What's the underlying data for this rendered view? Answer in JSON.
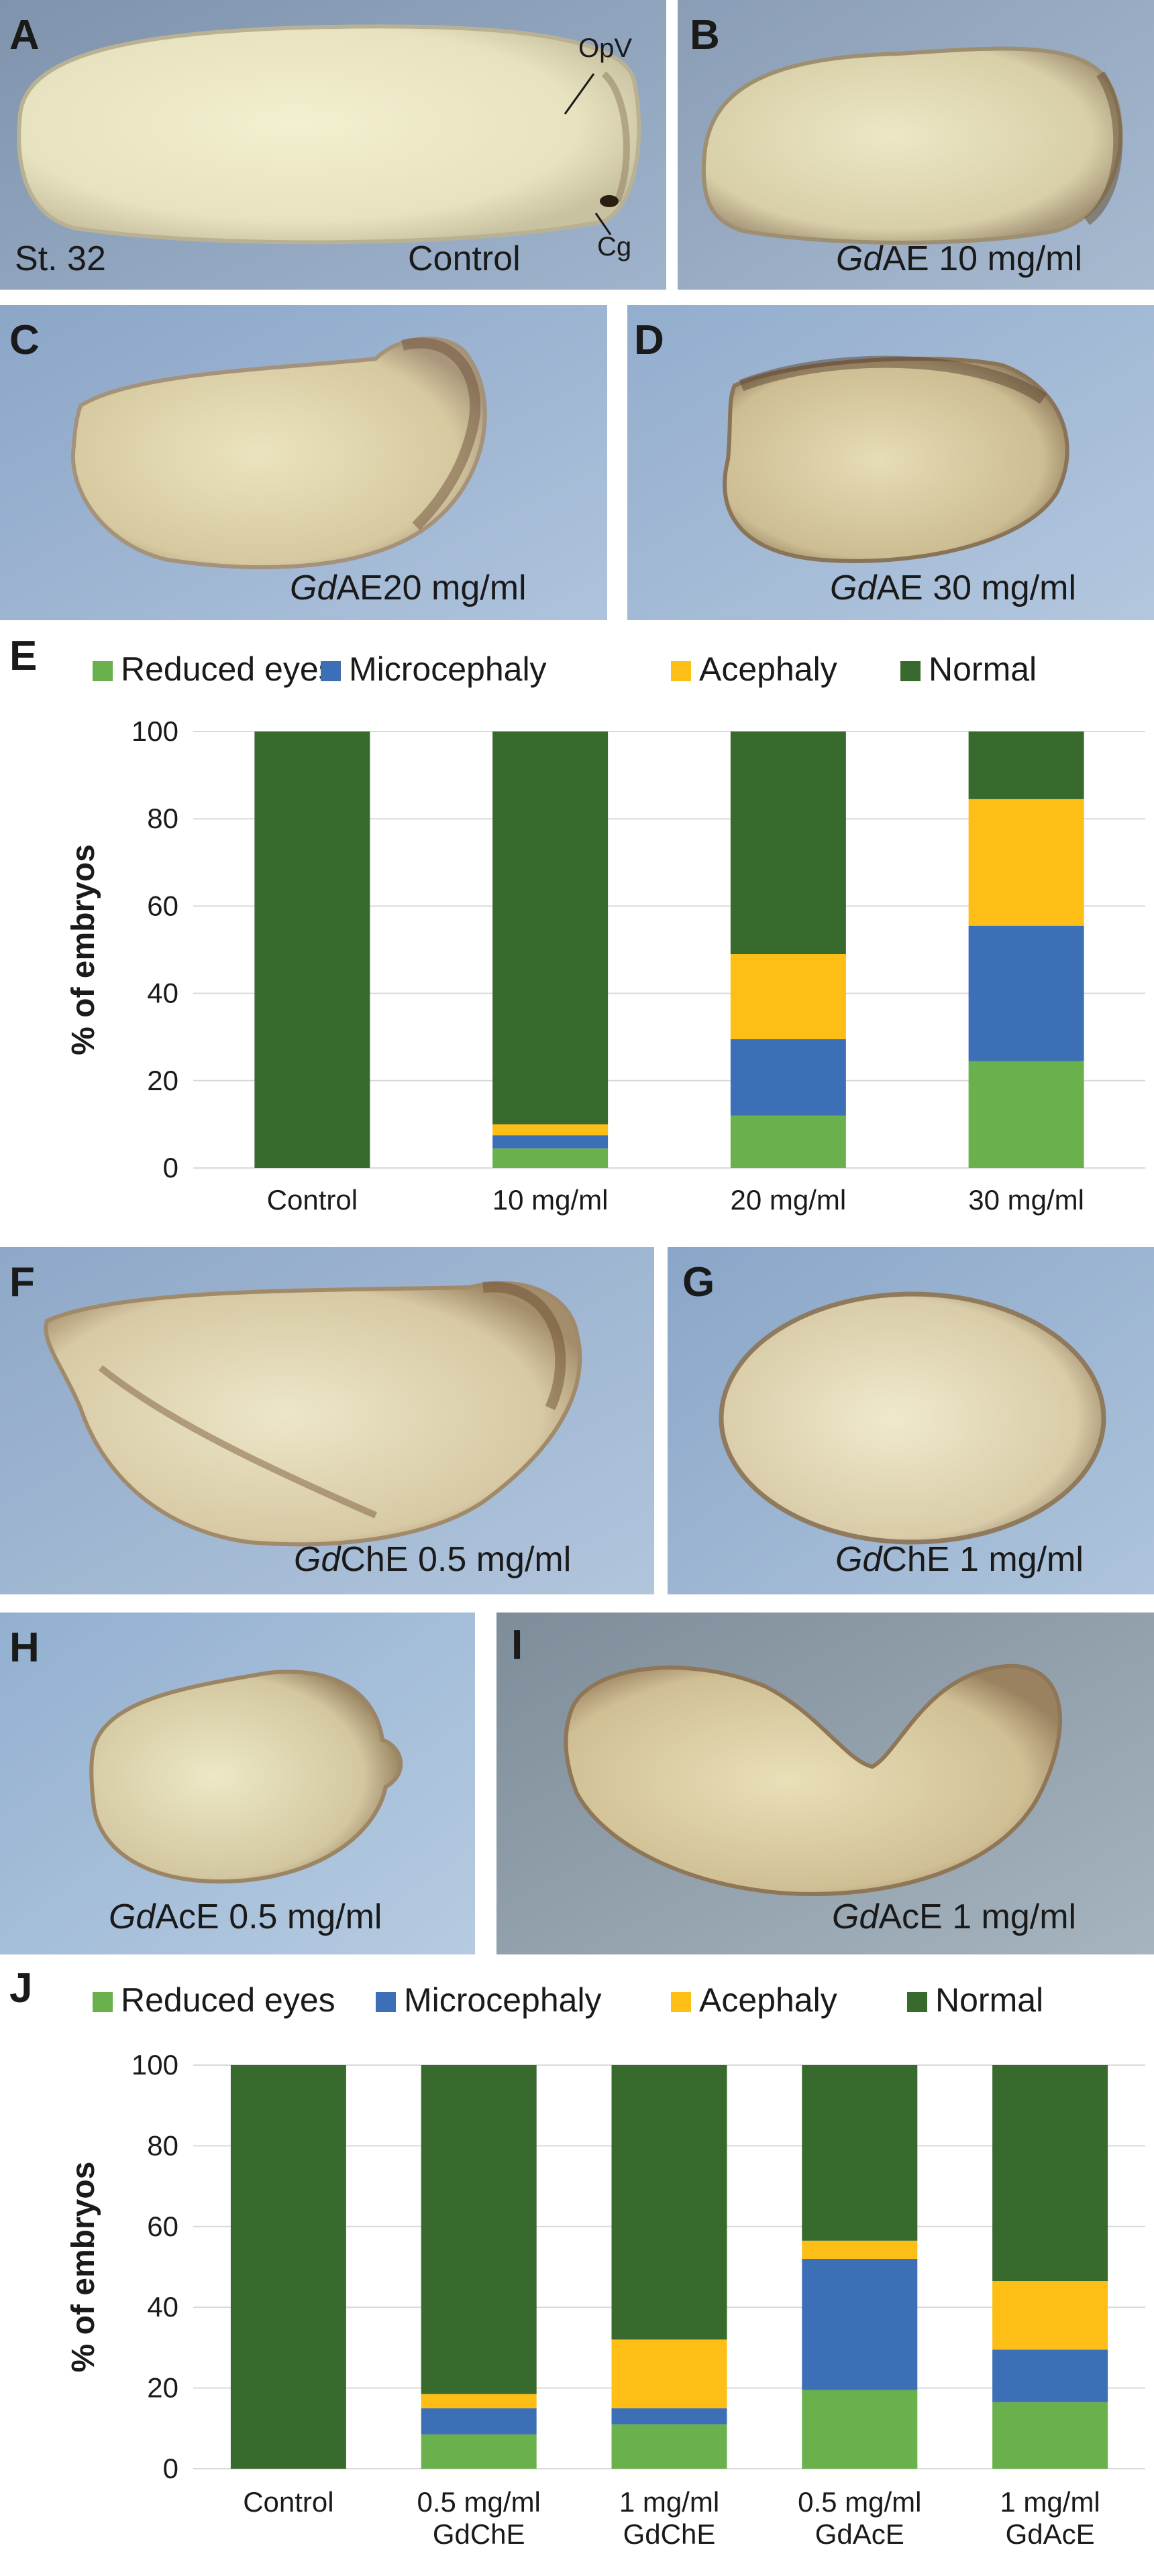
{
  "panels": {
    "A": {
      "label": "A",
      "stage": "St. 32",
      "caption": "Control",
      "annot_top": "OpV",
      "annot_bottom": "Cg"
    },
    "B": {
      "label": "B",
      "caption_em": "Gd",
      "caption_rest": "AE 10 mg/ml"
    },
    "C": {
      "label": "C",
      "caption_em": "Gd",
      "caption_rest": "AE20 mg/ml"
    },
    "D": {
      "label": "D",
      "caption_em": "Gd",
      "caption_rest": "AE 30 mg/ml"
    },
    "F": {
      "label": "F",
      "caption_em": "Gd",
      "caption_rest": "ChE 0.5 mg/ml"
    },
    "G": {
      "label": "G",
      "caption_em": "Gd",
      "caption_rest": "ChE 1 mg/ml"
    },
    "H": {
      "label": "H",
      "caption_em": "Gd",
      "caption_rest": "AcE 0.5 mg/ml"
    },
    "I": {
      "label": "I",
      "caption_em": "Gd",
      "caption_rest": "AcE 1 mg/ml"
    }
  },
  "colors": {
    "reduced_eyes": "#6ab04c",
    "microcephaly": "#3d6fb6",
    "acephaly": "#fdbe15",
    "normal": "#376a2c",
    "grid": "#d9d9d9"
  },
  "chart_data": [
    {
      "panel_label": "E",
      "type": "bar",
      "stacked": true,
      "categories": [
        [
          "Control"
        ],
        [
          "10 mg/ml"
        ],
        [
          "20 mg/ml"
        ],
        [
          "30 mg/ml"
        ]
      ],
      "series": [
        {
          "name": "Reduced eyes",
          "color_key": "reduced_eyes",
          "values": [
            0,
            4.5,
            12,
            24.5
          ]
        },
        {
          "name": "Microcephaly",
          "color_key": "microcephaly",
          "values": [
            0,
            3,
            17.5,
            31
          ]
        },
        {
          "name": "Acephaly",
          "color_key": "acephaly",
          "values": [
            0,
            2.5,
            19.5,
            29
          ]
        },
        {
          "name": "Normal",
          "color_key": "normal",
          "values": [
            100,
            90,
            51,
            15.5
          ]
        }
      ],
      "ylabel": "%  of embryos",
      "ylim": [
        0,
        100
      ],
      "yticks": [
        0,
        20,
        40,
        60,
        80,
        100
      ],
      "legend_position": "top",
      "grid": true
    },
    {
      "panel_label": "J",
      "type": "bar",
      "stacked": true,
      "categories": [
        [
          "Control"
        ],
        [
          "0.5 mg/ml",
          "GdChE"
        ],
        [
          "1 mg/ml",
          "GdChE"
        ],
        [
          "0.5 mg/ml",
          "GdAcE"
        ],
        [
          "1 mg/ml",
          "GdAcE"
        ]
      ],
      "series": [
        {
          "name": "Reduced eyes",
          "color_key": "reduced_eyes",
          "values": [
            0,
            8.5,
            11,
            19.5,
            16.5
          ]
        },
        {
          "name": "Microcephaly",
          "color_key": "microcephaly",
          "values": [
            0,
            6.5,
            4,
            32.5,
            13
          ]
        },
        {
          "name": "Acephaly",
          "color_key": "acephaly",
          "values": [
            0,
            3.5,
            17,
            4.5,
            17
          ]
        },
        {
          "name": "Normal",
          "color_key": "normal",
          "values": [
            100,
            81.5,
            68,
            43.5,
            53.5
          ]
        }
      ],
      "ylabel": "% of embryos",
      "ylim": [
        0,
        100
      ],
      "yticks": [
        0,
        20,
        40,
        60,
        80,
        100
      ],
      "legend_position": "top",
      "grid": true
    }
  ]
}
